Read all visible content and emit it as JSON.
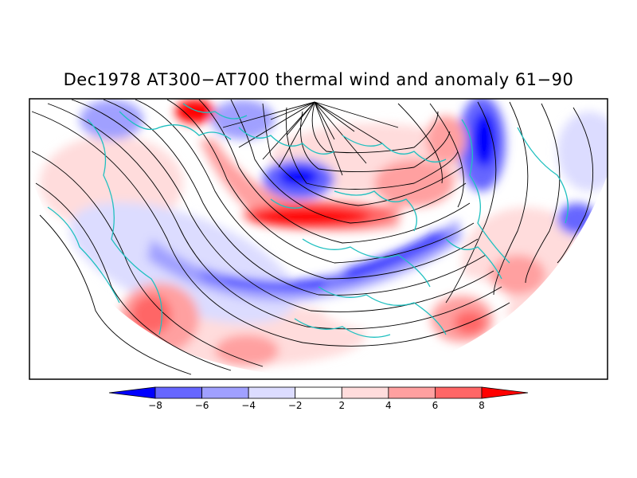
{
  "title": "Dec1978 AT300−AT700 thermal wind and anomaly 61−90",
  "colorbar": {
    "labels": [
      "−8",
      "−6",
      "−4",
      "−2",
      "2",
      "4",
      "6",
      "8"
    ],
    "colors": [
      "#0000ff",
      "#6666ff",
      "#a0a0ff",
      "#dcdcff",
      "#ffffff",
      "#ffdcdc",
      "#ffa0a0",
      "#ff6666",
      "#ff0000"
    ]
  },
  "map": {
    "projection": "polar stereographic (north pole at top-center)",
    "coastline_color": "#20c0c0",
    "streamline_color": "#000000"
  }
}
